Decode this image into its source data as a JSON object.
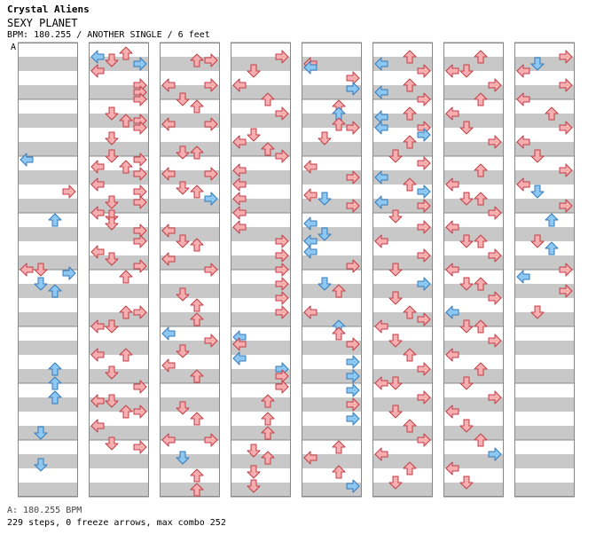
{
  "header": {
    "artist": "Crystal Aliens",
    "title": "SEXY PLANET",
    "info": "BPM: 180.255 / ANOTHER SINGLE / 6 feet",
    "marker": "A"
  },
  "footer": {
    "bpm_line": "A: 180.255 BPM",
    "stats": "229 steps, 0 freeze arrows, max combo 252"
  },
  "colors": {
    "quarter_fill": "#f7aeb0",
    "quarter_stroke": "#c23c44",
    "eighth_fill": "#8cc8f2",
    "eighth_stroke": "#3478b8",
    "stripe": "#c8c8c8",
    "border": "#888888"
  },
  "chart_data": {
    "type": "step-chart",
    "lanes": [
      "left",
      "down",
      "up",
      "right"
    ],
    "columns": 8,
    "measures_per_column": 8,
    "steps_total": 229,
    "freeze_arrows": 0,
    "max_combo": 252
  }
}
